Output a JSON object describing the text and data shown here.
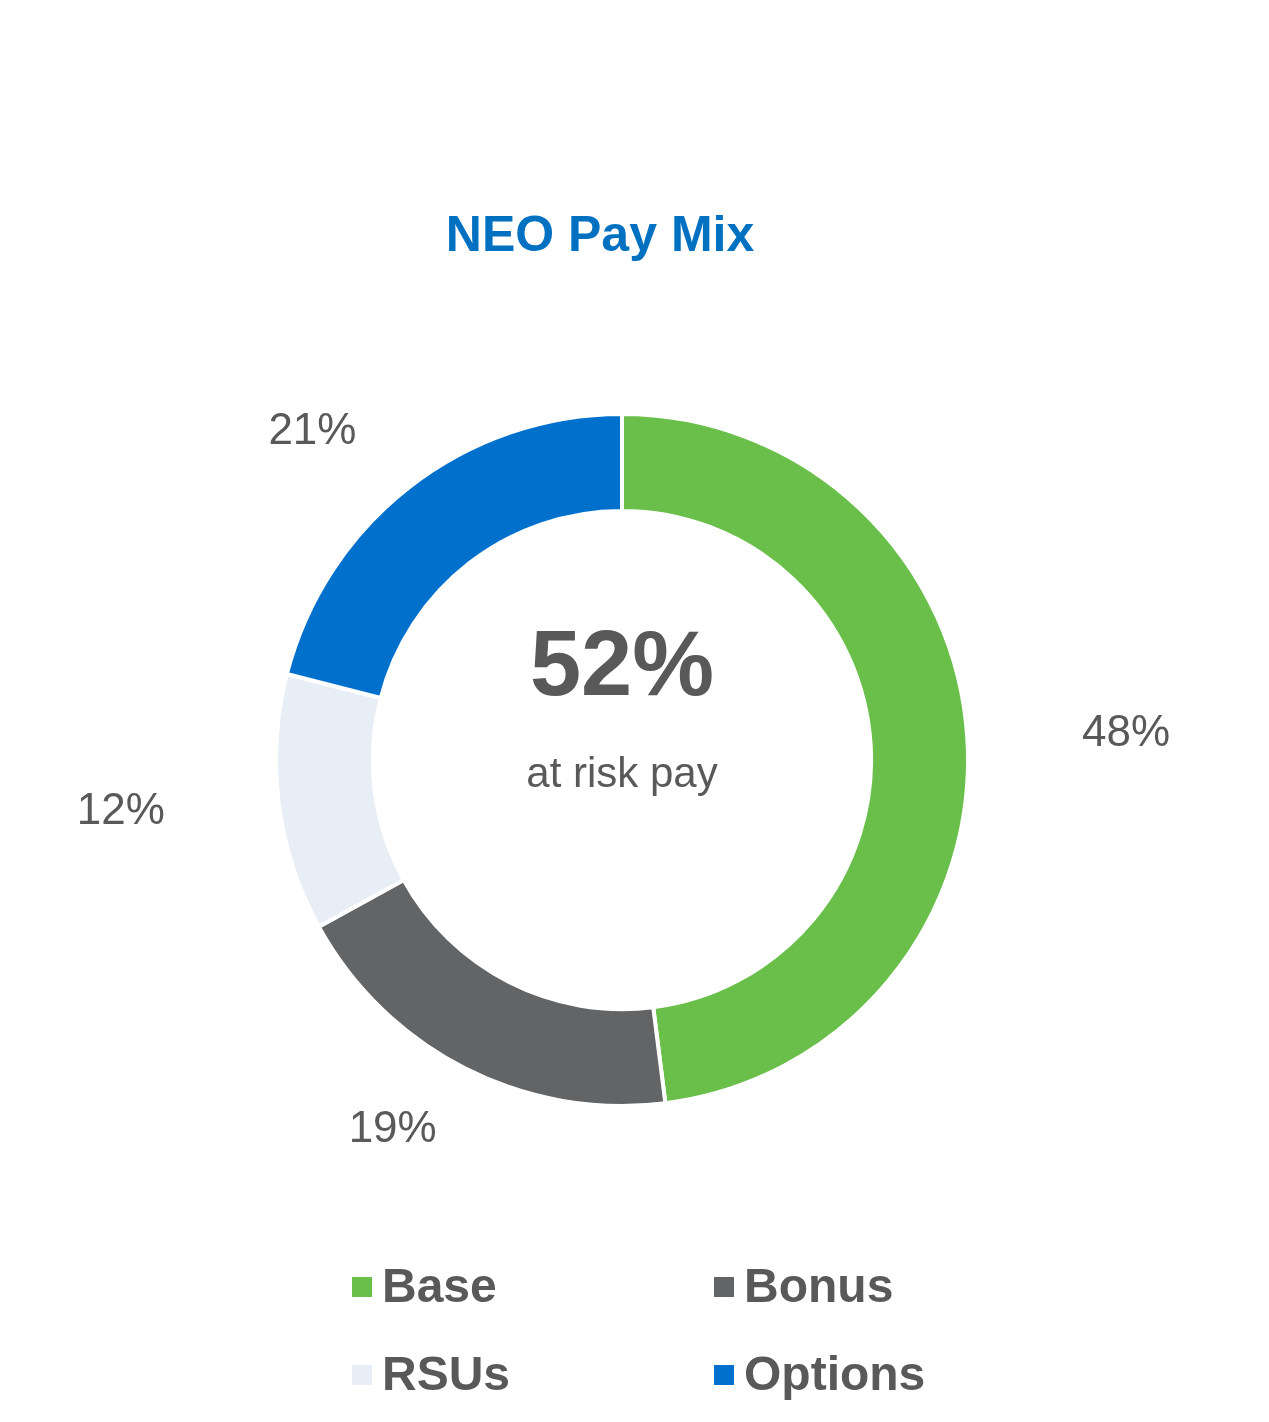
{
  "chart_data": {
    "type": "donut",
    "title": "NEO Pay Mix",
    "categories": [
      "Base",
      "Bonus",
      "RSUs",
      "Options"
    ],
    "values": [
      48,
      19,
      12,
      21
    ],
    "colors": [
      "#6abf4b",
      "#636466",
      "#e8eef5",
      "#0070cd"
    ],
    "value_labels": [
      "48%",
      "19%",
      "12%",
      "21%"
    ],
    "legend": "bottom",
    "annotations": [
      "52%",
      "at risk pay"
    ]
  }
}
